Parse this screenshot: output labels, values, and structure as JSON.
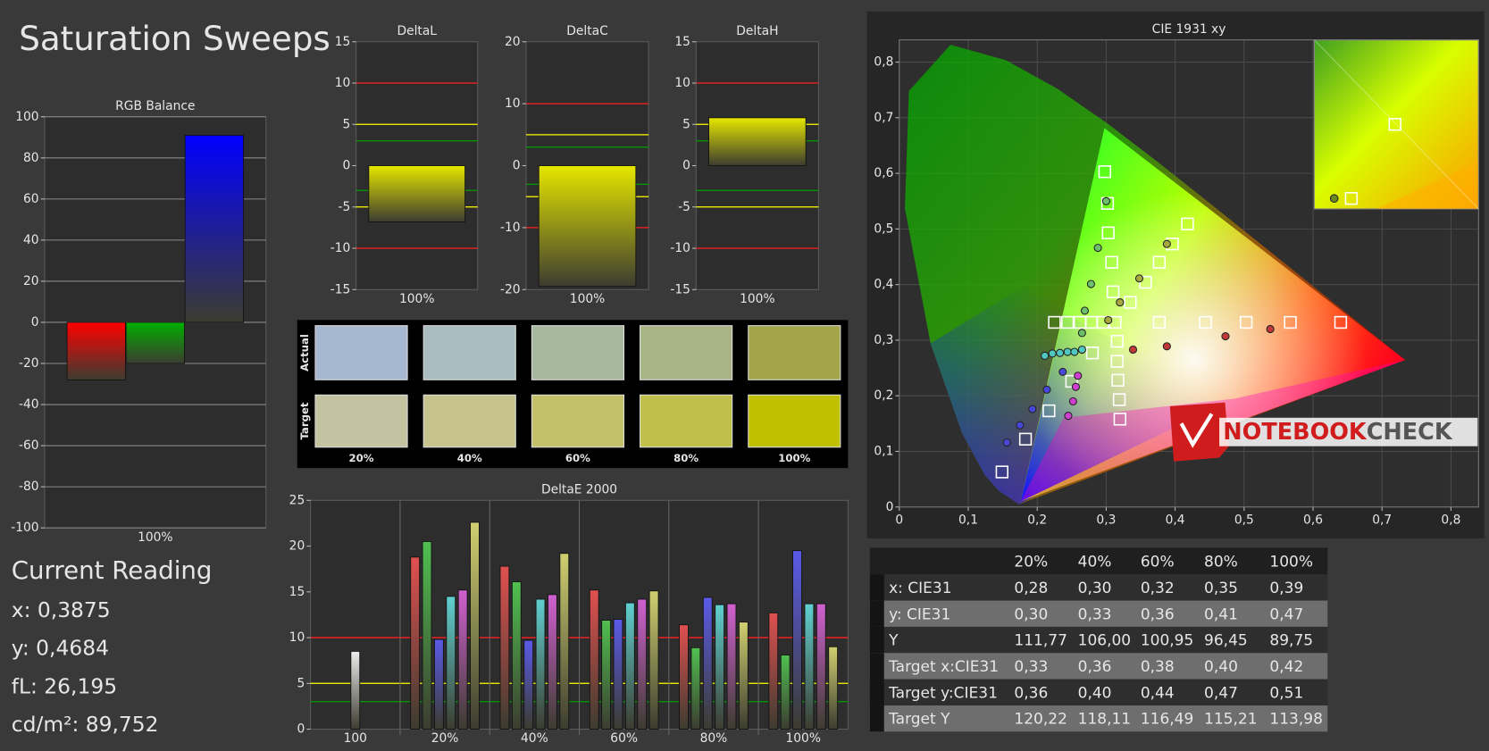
{
  "page_title": "Saturation Sweeps",
  "chart_data": [
    {
      "type": "bar",
      "title": "RGB Balance",
      "categories": [
        "100%"
      ],
      "series": [
        {
          "color": "#ff0000",
          "values": [
            -28
          ]
        },
        {
          "color": "#00b000",
          "values": [
            -20
          ]
        },
        {
          "color": "#0000ff",
          "values": [
            91
          ]
        }
      ],
      "ylim": [
        -100,
        100
      ],
      "yticks": [
        -100,
        -80,
        -60,
        -40,
        -20,
        0,
        20,
        40,
        60,
        80,
        100
      ],
      "grid": true
    },
    {
      "type": "bar",
      "title": "DeltaL",
      "categories": [
        "100%"
      ],
      "values": [
        -6.8
      ],
      "color": "#e6e600",
      "ylim": [
        -15,
        15
      ],
      "yticks": [
        -15,
        -10,
        -5,
        0,
        5,
        10,
        15
      ],
      "grid": false,
      "reference_lines": [
        {
          "value": 10,
          "color": "#ff2020"
        },
        {
          "value": -10,
          "color": "#ff2020"
        },
        {
          "value": 5,
          "color": "#ffff00"
        },
        {
          "value": -5,
          "color": "#ffff00"
        },
        {
          "value": 3,
          "color": "#00a000"
        },
        {
          "value": -3,
          "color": "#00a000"
        }
      ]
    },
    {
      "type": "bar",
      "title": "DeltaC",
      "categories": [
        "100%"
      ],
      "values": [
        -19.5
      ],
      "color": "#e6e600",
      "ylim": [
        -20,
        20
      ],
      "yticks": [
        -20,
        -10,
        0,
        10,
        20
      ],
      "grid": false,
      "reference_lines": [
        {
          "value": 10,
          "color": "#ff2020"
        },
        {
          "value": -10,
          "color": "#ff2020"
        },
        {
          "value": 5,
          "color": "#ffff00"
        },
        {
          "value": -5,
          "color": "#ffff00"
        },
        {
          "value": 3,
          "color": "#00a000"
        },
        {
          "value": -3,
          "color": "#00a000"
        }
      ]
    },
    {
      "type": "bar",
      "title": "DeltaH",
      "categories": [
        "100%"
      ],
      "values": [
        5.8
      ],
      "color": "#e6e600",
      "ylim": [
        -15,
        15
      ],
      "yticks": [
        -15,
        -10,
        -5,
        0,
        5,
        10,
        15
      ],
      "grid": false,
      "reference_lines": [
        {
          "value": 10,
          "color": "#ff2020"
        },
        {
          "value": -10,
          "color": "#ff2020"
        },
        {
          "value": 5,
          "color": "#ffff00"
        },
        {
          "value": -5,
          "color": "#ffff00"
        },
        {
          "value": 3,
          "color": "#00a000"
        },
        {
          "value": -3,
          "color": "#00a000"
        }
      ]
    },
    {
      "type": "swatch",
      "row_labels": [
        "Actual",
        "Target"
      ],
      "categories": [
        "20%",
        "40%",
        "60%",
        "80%",
        "100%"
      ],
      "actual_colors": [
        "#a6b8d0",
        "#a9bcc0",
        "#a8b8a0",
        "#a8b486",
        "#a2a548"
      ],
      "target_colors": [
        "#c3c3a2",
        "#c6c38d",
        "#c3c06a",
        "#c0bf4c",
        "#c0c000"
      ]
    },
    {
      "type": "bar",
      "title": "DeltaE 2000",
      "categories": [
        "100",
        "20%",
        "40%",
        "60%",
        "80%",
        "100%"
      ],
      "series": [
        {
          "color": "#ececec",
          "values": [
            8.5,
            null,
            null,
            null,
            null,
            null
          ]
        },
        {
          "color": "#e05050",
          "values": [
            null,
            18.8,
            17.8,
            15.2,
            11.4,
            12.7
          ]
        },
        {
          "color": "#50c050",
          "values": [
            null,
            20.5,
            16.1,
            11.9,
            8.9,
            8.1
          ]
        },
        {
          "color": "#5a5ae8",
          "values": [
            null,
            9.8,
            9.7,
            12.0,
            14.4,
            19.5
          ]
        },
        {
          "color": "#60d0d0",
          "values": [
            null,
            14.5,
            14.2,
            13.8,
            13.6,
            13.7
          ]
        },
        {
          "color": "#d060d0",
          "values": [
            null,
            15.2,
            14.7,
            14.2,
            13.7,
            13.7
          ]
        },
        {
          "color": "#d0d070",
          "values": [
            null,
            22.6,
            19.2,
            15.1,
            11.7,
            9.0
          ]
        }
      ],
      "ylim": [
        0,
        25
      ],
      "yticks": [
        0,
        5,
        10,
        15,
        20,
        25
      ],
      "grid": false,
      "reference_lines": [
        {
          "value": 10,
          "color": "#ff2020"
        },
        {
          "value": 5,
          "color": "#ffff00"
        },
        {
          "value": 3,
          "color": "#00a000"
        }
      ]
    },
    {
      "type": "scatter",
      "title": "CIE 1931 xy",
      "xlim": [
        0,
        0.84
      ],
      "ylim": [
        0,
        0.84
      ],
      "grid": true,
      "xticks": [
        0,
        {
          "value": 0.1,
          "label": "0,1"
        },
        {
          "value": 0.2,
          "label": "0,2"
        },
        {
          "value": 0.3,
          "label": "0,3"
        },
        {
          "value": 0.4,
          "label": "0,4"
        },
        {
          "value": 0.5,
          "label": "0,5"
        },
        {
          "value": 0.6,
          "label": "0,6"
        },
        {
          "value": 0.7,
          "label": "0,7"
        },
        {
          "value": 0.8,
          "label": "0,8"
        }
      ],
      "yticks": [
        0,
        {
          "value": 0.1,
          "label": "0,1"
        },
        {
          "value": 0.2,
          "label": "0,2"
        },
        {
          "value": 0.3,
          "label": "0,3"
        },
        {
          "value": 0.4,
          "label": "0,4"
        },
        {
          "value": 0.5,
          "label": "0,5"
        },
        {
          "value": 0.6,
          "label": "0,6"
        },
        {
          "value": 0.7,
          "label": "0,7"
        },
        {
          "value": 0.8,
          "label": "0,8"
        }
      ],
      "series": [
        {
          "marker": "square",
          "color": "#ffffff",
          "x": [
            0.298,
            0.302,
            0.303,
            0.308,
            0.31,
            0.313,
            0.418,
            0.396,
            0.377,
            0.357,
            0.335,
            0.225,
            0.244,
            0.262,
            0.279,
            0.295,
            0.377,
            0.444,
            0.503,
            0.567,
            0.64,
            0.28,
            0.316,
            0.316,
            0.317,
            0.319,
            0.32,
            0.25,
            0.217,
            0.183,
            0.149
          ],
          "y": [
            0.603,
            0.546,
            0.493,
            0.44,
            0.387,
            0.332,
            0.509,
            0.473,
            0.44,
            0.404,
            0.368,
            0.332,
            0.332,
            0.332,
            0.332,
            0.332,
            0.332,
            0.332,
            0.332,
            0.332,
            0.332,
            0.277,
            0.298,
            0.262,
            0.228,
            0.193,
            0.158,
            0.226,
            0.173,
            0.122,
            0.063
          ]
        },
        {
          "marker": "circle",
          "color": "#6cc06c",
          "x": [
            0.3,
            0.288,
            0.278,
            0.269,
            0.265
          ],
          "y": [
            0.55,
            0.466,
            0.401,
            0.353,
            0.313
          ]
        },
        {
          "marker": "circle",
          "color": "#a8a840",
          "x": [
            0.388,
            0.348,
            0.32,
            0.303
          ],
          "y": [
            0.473,
            0.411,
            0.368,
            0.336
          ]
        },
        {
          "marker": "circle",
          "color": "#c03838",
          "x": [
            0.538,
            0.473,
            0.388,
            0.339
          ],
          "y": [
            0.32,
            0.307,
            0.289,
            0.283
          ]
        },
        {
          "marker": "circle",
          "color": "#50c8c0",
          "x": [
            0.211,
            0.222,
            0.233,
            0.244,
            0.254,
            0.265
          ],
          "y": [
            0.272,
            0.276,
            0.277,
            0.279,
            0.279,
            0.283
          ]
        },
        {
          "marker": "circle",
          "color": "#4848d8",
          "x": [
            0.156,
            0.175,
            0.193,
            0.214,
            0.237
          ],
          "y": [
            0.116,
            0.147,
            0.176,
            0.211,
            0.243
          ]
        },
        {
          "marker": "circle",
          "color": "#d040d0",
          "x": [
            0.245,
            0.252,
            0.256,
            0.259
          ],
          "y": [
            0.164,
            0.19,
            0.216,
            0.236
          ]
        }
      ]
    }
  ],
  "logo": [
    "NOTEBOOK",
    "CHECK"
  ],
  "current_reading": {
    "title": "Current Reading",
    "lines": [
      "x: 0,3875",
      "y: 0,4684",
      "fL: 26,195",
      "cd/m²: 89,752"
    ]
  },
  "table": {
    "header": [
      "20%",
      "40%",
      "60%",
      "80%",
      "100%"
    ],
    "rows": [
      [
        "x: CIE31",
        "0,28",
        "0,30",
        "0,32",
        "0,35",
        "0,39"
      ],
      [
        "y: CIE31",
        "0,30",
        "0,33",
        "0,36",
        "0,41",
        "0,47"
      ],
      [
        "Y",
        "111,77",
        "106,00",
        "100,95",
        "96,45",
        "89,75"
      ],
      [
        "Target x:CIE31",
        "0,33",
        "0,36",
        "0,38",
        "0,40",
        "0,42"
      ],
      [
        "Target y:CIE31",
        "0,36",
        "0,40",
        "0,44",
        "0,47",
        "0,51"
      ],
      [
        "Target Y",
        "120,22",
        "118,11",
        "116,49",
        "115,21",
        "113,98"
      ]
    ]
  }
}
